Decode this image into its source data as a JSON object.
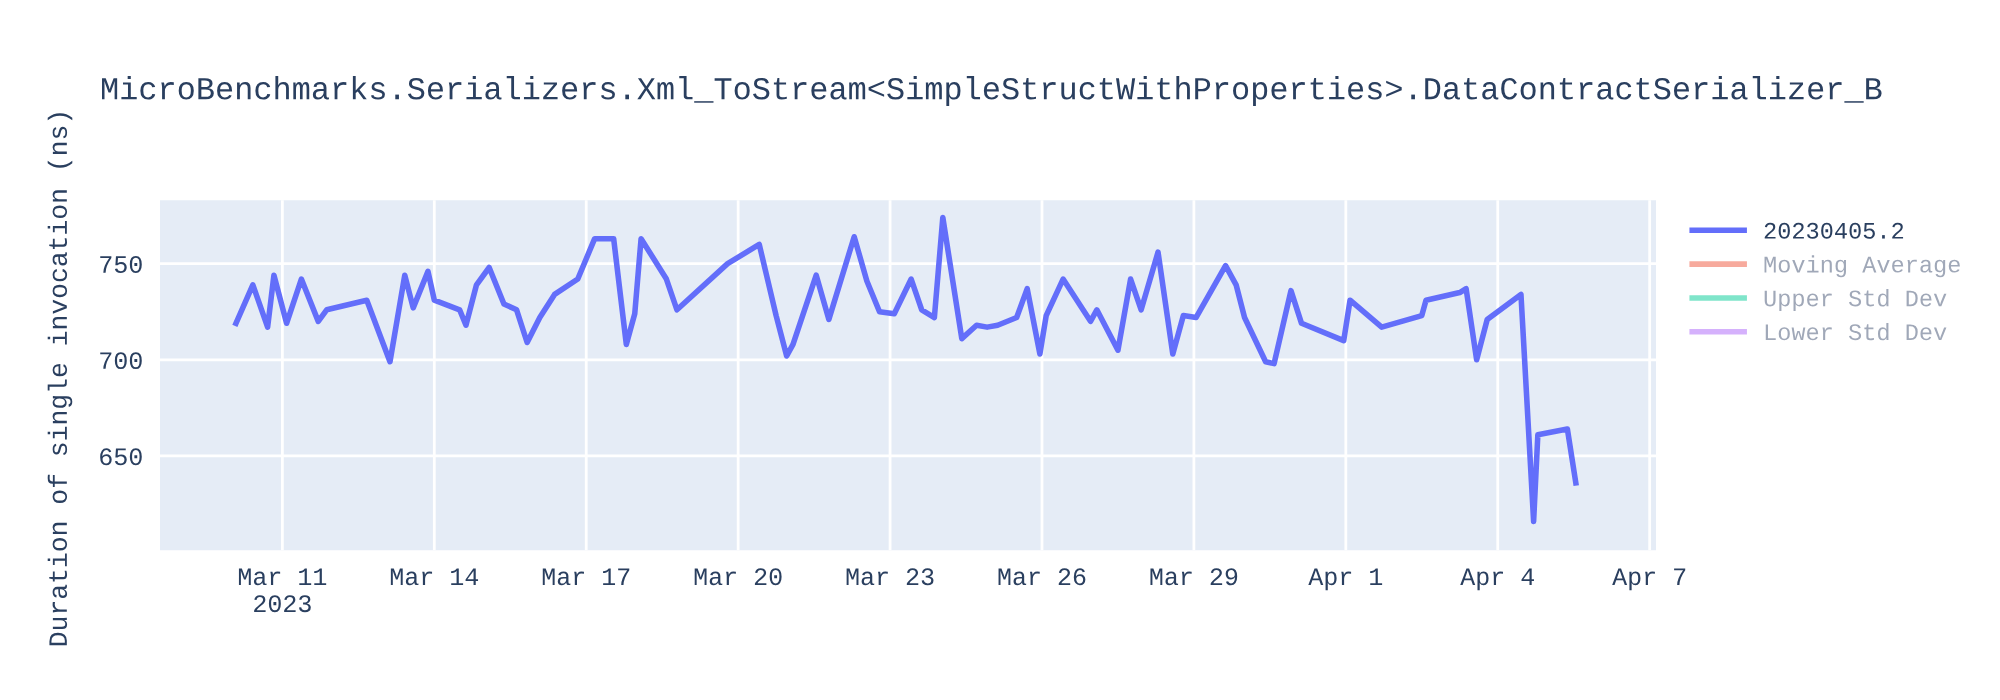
{
  "chart_data": {
    "type": "line",
    "title": "MicroBenchmarks.Serializers.Xml_ToStream<SimpleStructWithProperties>.DataContractSerializer_B",
    "ylabel": "Duration of single invocation (ns)",
    "x": [
      "2023-03-10T02:00",
      "2023-03-10T10:00",
      "2023-03-10T17:00",
      "2023-03-10T20:00",
      "2023-03-11T02:00",
      "2023-03-11T09:00",
      "2023-03-11T17:00",
      "2023-03-11T21:00",
      "2023-03-12T16:00",
      "2023-03-13T03:00",
      "2023-03-13T10:00",
      "2023-03-13T14:00",
      "2023-03-13T21:00",
      "2023-03-14T00:00",
      "2023-03-14T12:00",
      "2023-03-14T15:00",
      "2023-03-14T20:00",
      "2023-03-15T02:00",
      "2023-03-15T09:00",
      "2023-03-15T15:00",
      "2023-03-15T20:00",
      "2023-03-16T02:00",
      "2023-03-16T09:00",
      "2023-03-16T20:00",
      "2023-03-17T04:00",
      "2023-03-17T13:00",
      "2023-03-17T19:00",
      "2023-03-17T23:00",
      "2023-03-18T02:00",
      "2023-03-18T14:00",
      "2023-03-18T19:00",
      "2023-03-19T19:00",
      "2023-03-20T10:00",
      "2023-03-20T18:00",
      "2023-03-20T23:00",
      "2023-03-21T02:00",
      "2023-03-21T13:00",
      "2023-03-21T19:00",
      "2023-03-22T07:00",
      "2023-03-22T13:00",
      "2023-03-22T19:00",
      "2023-03-23T02:00",
      "2023-03-23T10:00",
      "2023-03-23T15:00",
      "2023-03-23T21:00",
      "2023-03-24T01:00",
      "2023-03-24T10:00",
      "2023-03-24T17:00",
      "2023-03-24T22:00",
      "2023-03-25T03:00",
      "2023-03-25T12:00",
      "2023-03-25T17:00",
      "2023-03-25T23:00",
      "2023-03-26T02:00",
      "2023-03-26T10:00",
      "2023-03-26T23:00",
      "2023-03-27T02:00",
      "2023-03-27T12:00",
      "2023-03-27T18:00",
      "2023-03-27T23:00",
      "2023-03-28T07:00",
      "2023-03-28T14:00",
      "2023-03-28T19:00",
      "2023-03-29T01:00",
      "2023-03-29T15:00",
      "2023-03-29T20:00",
      "2023-03-30T00:00",
      "2023-03-30T10:00",
      "2023-03-30T14:00",
      "2023-03-30T22:00",
      "2023-03-31T03:00",
      "2023-03-31T23:00",
      "2023-04-01T02:00",
      "2023-04-01T17:00",
      "2023-04-02T12:00",
      "2023-04-02T14:00",
      "2023-04-03T06:00",
      "2023-04-03T09:00",
      "2023-04-03T14:00",
      "2023-04-03T19:00",
      "2023-04-04T11:00",
      "2023-04-04T17:00",
      "2023-04-04T19:00",
      "2023-04-05T09:00",
      "2023-04-05T13:00"
    ],
    "series": [
      {
        "name": "20230405.2",
        "color": "#636efa",
        "values": [
          719,
          739,
          717,
          744,
          719,
          742,
          720,
          726,
          731,
          699,
          744,
          727,
          746,
          731,
          726,
          718,
          739,
          748,
          729,
          726,
          709,
          722,
          734,
          742,
          763,
          763,
          708,
          724,
          763,
          742,
          726,
          750,
          760,
          723,
          702,
          708,
          744,
          721,
          764,
          741,
          725,
          724,
          742,
          726,
          722,
          774,
          711,
          718,
          717,
          718,
          722,
          737,
          703,
          723,
          742,
          720,
          726,
          705,
          742,
          726,
          756,
          703,
          723,
          722,
          749,
          739,
          722,
          699,
          698,
          736,
          719,
          710,
          731,
          717,
          723,
          731,
          735,
          737,
          700,
          721,
          734,
          616,
          661,
          664,
          636
        ]
      },
      {
        "name": "Moving Average",
        "color": "#ef553b",
        "values": [
          null,
          null,
          null,
          null,
          null,
          null,
          null,
          null,
          null,
          null,
          null,
          null,
          null,
          null,
          null,
          null,
          null,
          null,
          null,
          null,
          null,
          null,
          null,
          null,
          null,
          null,
          null,
          null,
          null,
          null,
          null,
          null,
          null,
          null,
          null,
          null,
          null,
          null,
          null,
          null,
          null,
          null,
          null,
          null,
          null,
          null,
          null,
          null,
          null,
          null,
          null,
          null,
          null,
          null,
          null,
          null,
          null,
          null,
          null,
          null,
          null,
          null,
          null,
          null,
          null,
          null,
          null,
          null,
          null,
          null,
          null,
          null,
          null,
          null,
          null,
          null,
          null,
          null,
          null,
          null,
          null,
          null,
          null,
          null,
          null
        ]
      },
      {
        "name": "Upper Std Dev",
        "color": "#00cc96",
        "values": [
          null,
          null,
          null,
          null,
          null,
          null,
          null,
          null,
          null,
          null,
          null,
          null,
          null,
          null,
          null,
          null,
          null,
          null,
          null,
          null,
          null,
          null,
          null,
          null,
          null,
          null,
          null,
          null,
          null,
          null,
          null,
          null,
          null,
          null,
          null,
          null,
          null,
          null,
          null,
          null,
          null,
          null,
          null,
          null,
          null,
          null,
          null,
          null,
          null,
          null,
          null,
          null,
          null,
          null,
          null,
          null,
          null,
          null,
          null,
          null,
          null,
          null,
          null,
          null,
          null,
          null,
          null,
          null,
          null,
          null,
          null,
          null,
          null,
          null,
          null,
          null,
          null,
          null,
          null,
          null,
          null,
          null,
          null,
          null,
          null
        ]
      },
      {
        "name": "Lower Std Dev",
        "color": "#ab63fa",
        "values": [
          null,
          null,
          null,
          null,
          null,
          null,
          null,
          null,
          null,
          null,
          null,
          null,
          null,
          null,
          null,
          null,
          null,
          null,
          null,
          null,
          null,
          null,
          null,
          null,
          null,
          null,
          null,
          null,
          null,
          null,
          null,
          null,
          null,
          null,
          null,
          null,
          null,
          null,
          null,
          null,
          null,
          null,
          null,
          null,
          null,
          null,
          null,
          null,
          null,
          null,
          null,
          null,
          null,
          null,
          null,
          null,
          null,
          null,
          null,
          null,
          null,
          null,
          null,
          null,
          null,
          null,
          null,
          null,
          null,
          null,
          null,
          null,
          null,
          null,
          null,
          null,
          null,
          null,
          null,
          null,
          null,
          null,
          null,
          null,
          null
        ]
      }
    ],
    "xlim": [
      "2023-03-08T14:00",
      "2023-04-07T03:00"
    ],
    "xticks": [
      {
        "value": "2023-03-11",
        "label": "Mar 11\n2023"
      },
      {
        "value": "2023-03-14",
        "label": "Mar 14"
      },
      {
        "value": "2023-03-17",
        "label": "Mar 17"
      },
      {
        "value": "2023-03-20",
        "label": "Mar 20"
      },
      {
        "value": "2023-03-23",
        "label": "Mar 23"
      },
      {
        "value": "2023-03-26",
        "label": "Mar 26"
      },
      {
        "value": "2023-03-29",
        "label": "Mar 29"
      },
      {
        "value": "2023-04-01",
        "label": "Apr 1"
      },
      {
        "value": "2023-04-04",
        "label": "Apr 4"
      },
      {
        "value": "2023-04-07",
        "label": "Apr 7"
      }
    ],
    "ylim": [
      601,
      783
    ],
    "yticks": [
      650,
      700,
      750
    ],
    "grid": true,
    "legend": "top right",
    "line_style": "solid"
  }
}
